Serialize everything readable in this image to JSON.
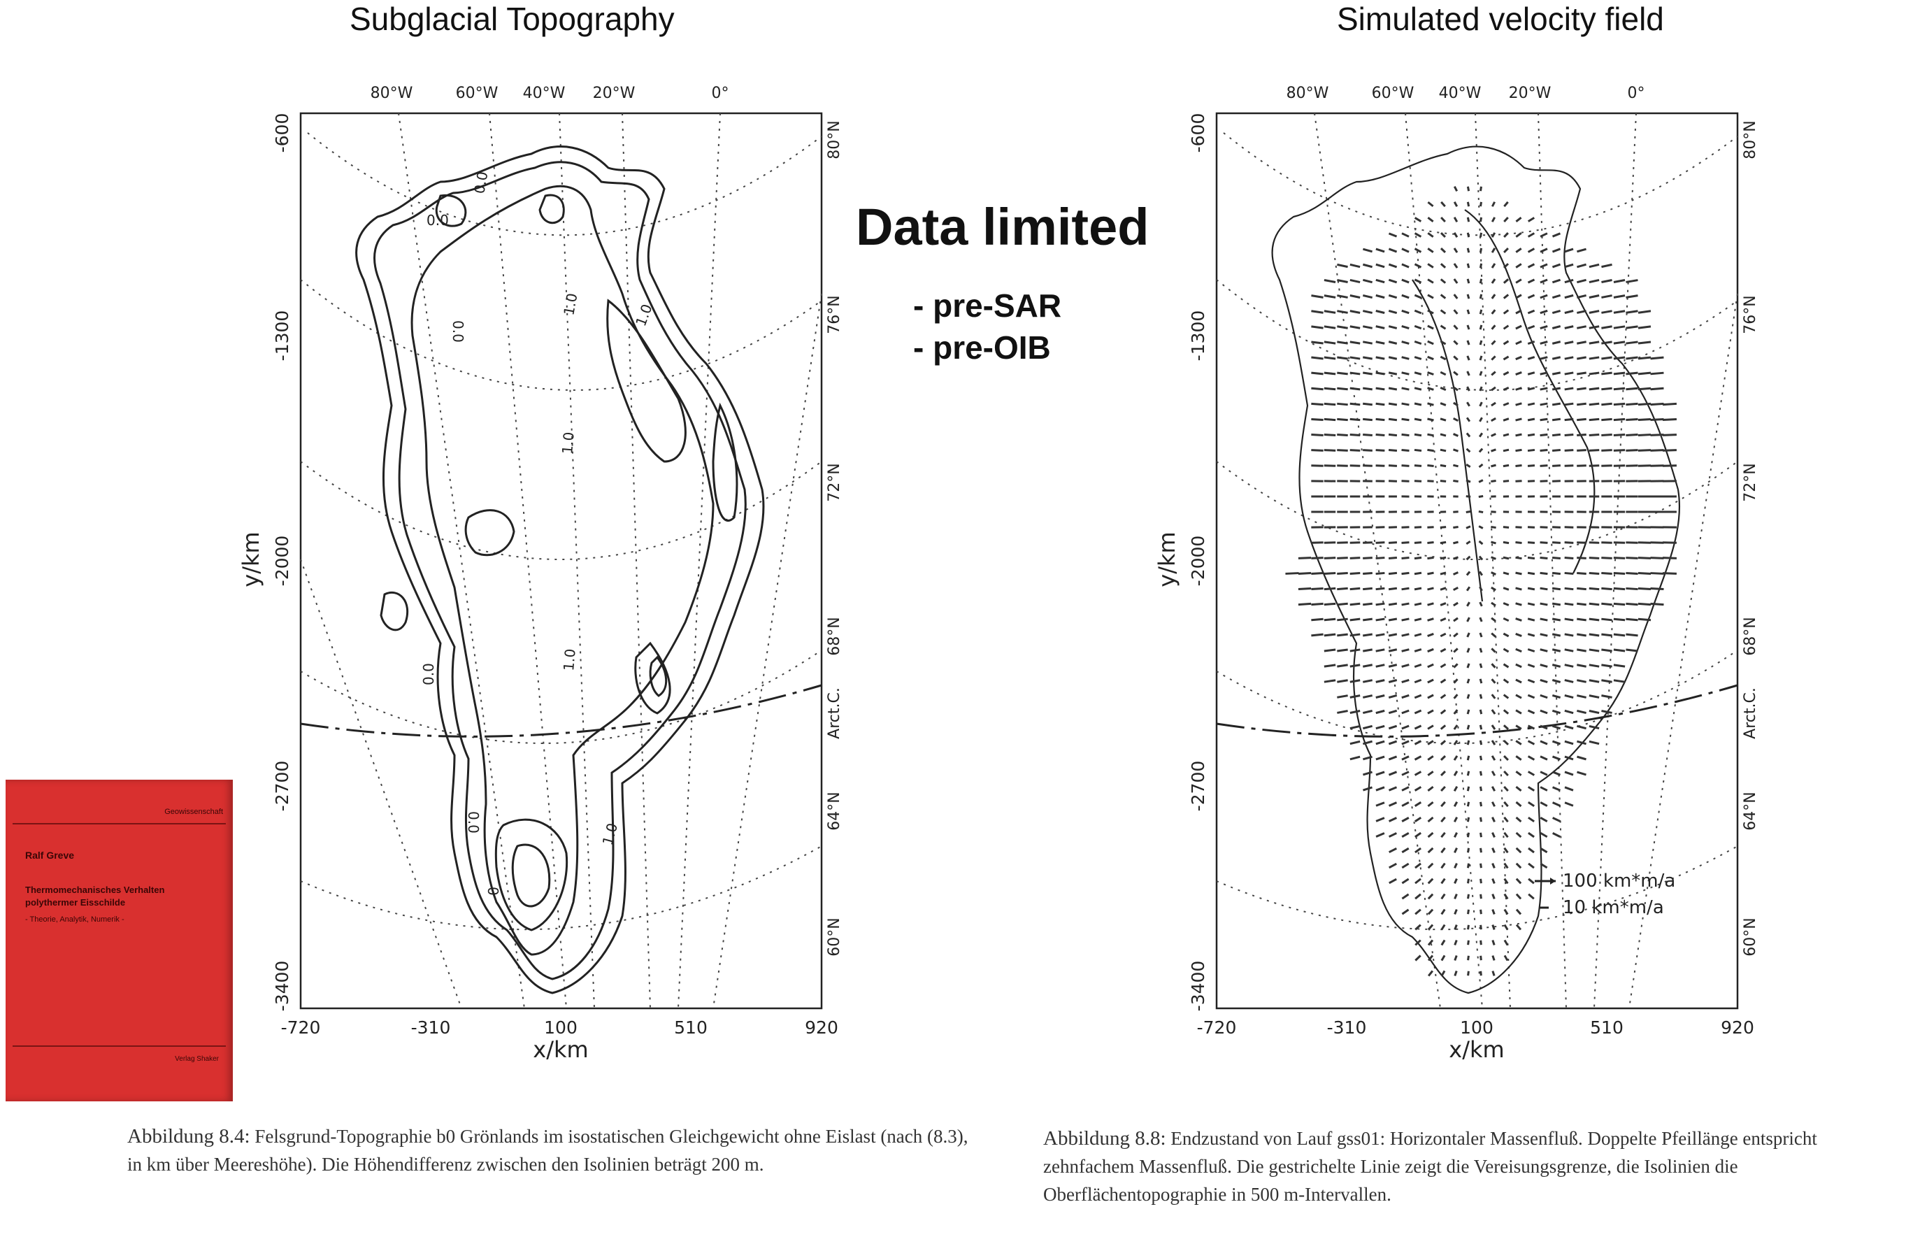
{
  "titles": {
    "left": "Subglacial Topography",
    "right": "Simulated velocity field"
  },
  "middle": {
    "headline": "Data limited",
    "bullets": [
      "- pre-SAR",
      "- pre-OIB"
    ]
  },
  "left_map": {
    "ylabel": "y/km",
    "xlabel": "x/km",
    "y_ticks": [
      "-600",
      "-1300",
      "-2000",
      "-2700",
      "-3400"
    ],
    "x_ticks": [
      "-720",
      "-310",
      "100",
      "510",
      "920"
    ],
    "top_meridians": [
      "80°W",
      "60°W",
      "40°W",
      "20°W",
      "0°"
    ],
    "right_parallels": [
      "80°N",
      "76°N",
      "72°N",
      "68°N",
      "Arct.C.",
      "64°N",
      "60°N"
    ],
    "contour_labels": [
      "0.0",
      "0.0",
      "0.0",
      "1.0",
      "1.0",
      "1.0",
      "0.0",
      "0.0",
      "1.0",
      "1.0",
      "0"
    ]
  },
  "right_map": {
    "ylabel": "y/km",
    "xlabel": "x/km",
    "y_ticks": [
      "-600",
      "-1300",
      "-2000",
      "-2700",
      "-3400"
    ],
    "x_ticks": [
      "-720",
      "-310",
      "100",
      "510",
      "920"
    ],
    "top_meridians": [
      "80°W",
      "60°W",
      "40°W",
      "20°W",
      "0°"
    ],
    "right_parallels": [
      "80°N",
      "76°N",
      "72°N",
      "68°N",
      "Arct.C.",
      "64°N",
      "60°N"
    ],
    "legend": [
      "100 km*m/a",
      "10 km*m/a"
    ]
  },
  "book": {
    "series": "Geowissenschaft",
    "author": "Ralf Greve",
    "title_line1": "Thermomechanisches Verhalten",
    "title_line2": "polythermer Eisschilde",
    "subtitle": "- Theorie, Analytik, Numerik -",
    "publisher": "Verlag Shaker"
  },
  "captions": {
    "left": {
      "label": "Abbildung 8.4:",
      "text": "Felsgrund-Topographie b0 Grönlands im isostatischen Gleichgewicht ohne Eislast (nach (8.3), in km über Meereshöhe). Die Höhendifferenz zwischen den Isolinien beträgt 200 m."
    },
    "right": {
      "label": "Abbildung 8.8:",
      "text": "Endzustand von Lauf gss01: Horizontaler Massenfluß. Doppelte Pfeillänge entspricht zehnfachem Massenfluß. Die gestrichelte Linie zeigt die Vereisungsgrenze, die Isolinien die Oberflächentopographie in 500 m-Intervallen."
    }
  },
  "colors": {
    "book_red": "#d9302f",
    "ink": "#222222"
  }
}
